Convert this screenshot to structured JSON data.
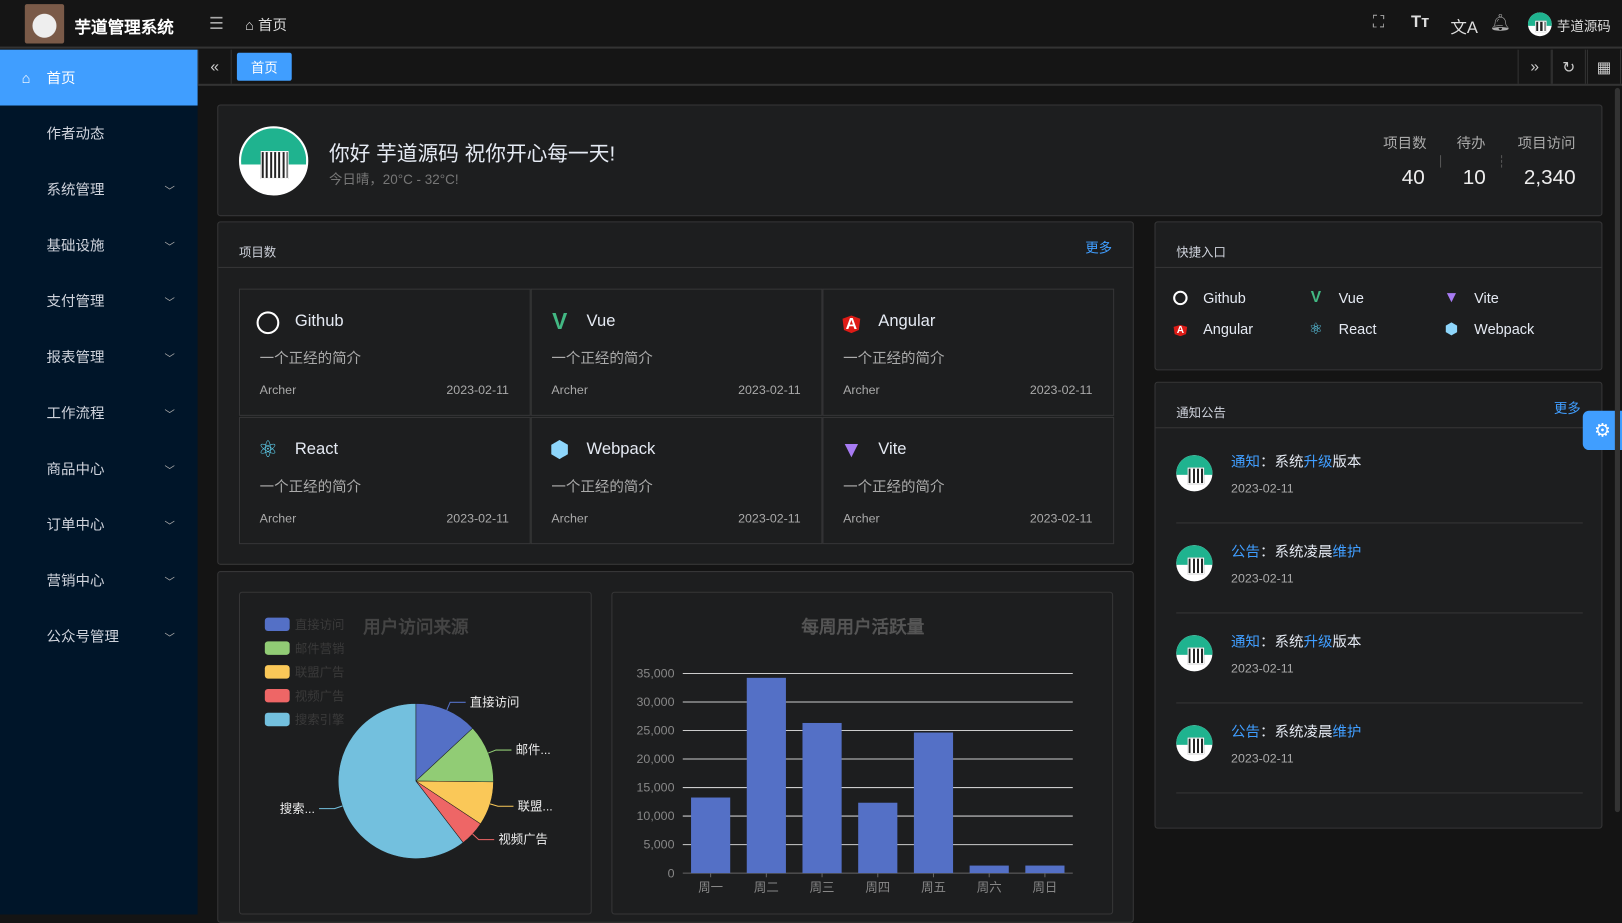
{
  "header": {
    "title": "芋道管理系统",
    "breadcrumb": "首页",
    "user_name": "芋道源码"
  },
  "sidebar": {
    "items": [
      {
        "label": "首页",
        "active": true
      },
      {
        "label": "作者动态"
      },
      {
        "label": "系统管理",
        "expand": true
      },
      {
        "label": "基础设施",
        "expand": true
      },
      {
        "label": "支付管理",
        "expand": true
      },
      {
        "label": "报表管理",
        "expand": true
      },
      {
        "label": "工作流程",
        "expand": true
      },
      {
        "label": "商品中心",
        "expand": true
      },
      {
        "label": "订单中心",
        "expand": true
      },
      {
        "label": "营销中心",
        "expand": true
      },
      {
        "label": "公众号管理",
        "expand": true
      }
    ]
  },
  "tabs": [
    {
      "label": "首页",
      "active": true
    }
  ],
  "welcome": {
    "greeting": "你好 芋道源码 祝你开心每一天!",
    "weather": "今日晴，20°C - 32°C!",
    "stats": [
      {
        "label": "项目数",
        "value": "40"
      },
      {
        "label": "待办",
        "value": "10"
      },
      {
        "label": "项目访问",
        "value": "2,340"
      }
    ]
  },
  "projects": {
    "title": "项目数",
    "more": "更多",
    "items": [
      {
        "name": "Github",
        "icon": "github-icon",
        "color": "#ffffff",
        "desc": "一个正经的简介",
        "author": "Archer",
        "date": "2023-02-11"
      },
      {
        "name": "Vue",
        "icon": "vue-icon",
        "color": "#42b883",
        "desc": "一个正经的简介",
        "author": "Archer",
        "date": "2023-02-11"
      },
      {
        "name": "Angular",
        "icon": "angular-icon",
        "color": "#dd1b16",
        "desc": "一个正经的简介",
        "author": "Archer",
        "date": "2023-02-11"
      },
      {
        "name": "React",
        "icon": "react-icon",
        "color": "#61dafb",
        "desc": "一个正经的简介",
        "author": "Archer",
        "date": "2023-02-11"
      },
      {
        "name": "Webpack",
        "icon": "webpack-icon",
        "color": "#8ed6fb",
        "desc": "一个正经的简介",
        "author": "Archer",
        "date": "2023-02-11"
      },
      {
        "name": "Vite",
        "icon": "vite-icon",
        "color": "#a77bf3",
        "desc": "一个正经的简介",
        "author": "Archer",
        "date": "2023-02-11"
      }
    ]
  },
  "shortcuts": {
    "title": "快捷入口",
    "items": [
      {
        "name": "Github",
        "icon": "github-icon",
        "color": "#ffffff"
      },
      {
        "name": "Vue",
        "icon": "vue-icon",
        "color": "#42b883"
      },
      {
        "name": "Vite",
        "icon": "vite-icon",
        "color": "#a77bf3"
      },
      {
        "name": "Angular",
        "icon": "angular-icon",
        "color": "#dd1b16"
      },
      {
        "name": "React",
        "icon": "react-icon",
        "color": "#61dafb"
      },
      {
        "name": "Webpack",
        "icon": "webpack-icon",
        "color": "#8ed6fb"
      }
    ]
  },
  "notices": {
    "title": "通知公告",
    "more": "更多",
    "items": [
      {
        "type": "通知",
        "sep": "：",
        "pre": "系统",
        "key": "升级",
        "post": "版本",
        "date": "2023-02-11"
      },
      {
        "type": "公告",
        "sep": "：",
        "pre": "系统凌晨",
        "key": "维护",
        "post": "",
        "date": "2023-02-11"
      },
      {
        "type": "通知",
        "sep": "：",
        "pre": "系统",
        "key": "升级",
        "post": "版本",
        "date": "2023-02-11"
      },
      {
        "type": "公告",
        "sep": "：",
        "pre": "系统凌晨",
        "key": "维护",
        "post": "",
        "date": "2023-02-11"
      }
    ]
  },
  "chart_data": [
    {
      "type": "pie",
      "title": "用户访问来源",
      "legend_position": "top-left",
      "categories": [
        "直接访问",
        "邮件营销",
        "联盟广告",
        "视频广告",
        "搜索引擎"
      ],
      "values": [
        335,
        310,
        234,
        135,
        1548
      ],
      "labels": [
        "直接访问",
        "邮件...",
        "联盟...",
        "视频广告",
        "搜索..."
      ],
      "colors": [
        "#5470c6",
        "#91cc75",
        "#fac858",
        "#ee6666",
        "#73c0de"
      ]
    },
    {
      "type": "bar",
      "title": "每周用户活跃量",
      "categories": [
        "周一",
        "周二",
        "周三",
        "周四",
        "周五",
        "周六",
        "周日"
      ],
      "values": [
        13253,
        34235,
        26321,
        12340,
        24643,
        1322,
        1324
      ],
      "ylim": [
        0,
        35000
      ],
      "yticks": [
        "0",
        "5,000",
        "10,000",
        "15,000",
        "20,000",
        "25,000",
        "30,000",
        "35,000"
      ],
      "grid": true,
      "color": "#5470c6"
    }
  ]
}
